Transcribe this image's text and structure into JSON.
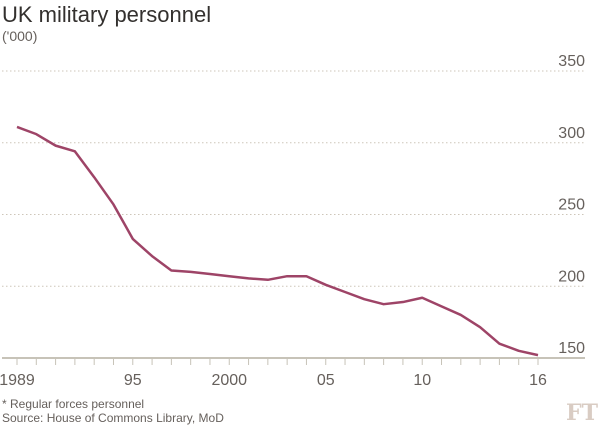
{
  "chart_data": {
    "type": "line",
    "title": "UK military personnel",
    "subtitle": "('000)",
    "note": "* Regular forces personnel",
    "source": "Source: House of Commons Library, MoD",
    "logo": "FT",
    "x": [
      1989,
      1990,
      1991,
      1992,
      1993,
      1994,
      1995,
      1996,
      1997,
      1998,
      1999,
      2000,
      2001,
      2002,
      2003,
      2004,
      2005,
      2006,
      2007,
      2008,
      2009,
      2010,
      2011,
      2012,
      2013,
      2014,
      2015,
      2016
    ],
    "series": [
      {
        "name": "Regular forces personnel",
        "color": "#9e4467",
        "values": [
          311,
          306,
          298,
          294,
          276,
          257,
          233,
          221,
          211,
          210,
          208.5,
          207,
          205.5,
          204.5,
          207,
          207,
          201,
          196,
          191,
          187.5,
          189,
          192,
          186,
          180,
          171.5,
          160,
          155,
          152
        ]
      }
    ],
    "ylim": [
      150,
      350
    ],
    "yticks": [
      "350",
      "300",
      "250",
      "200",
      "150"
    ],
    "ytick_values": [
      350,
      300,
      250,
      200,
      150
    ],
    "xtick_labels": [
      {
        "year": 1989,
        "label": "1989"
      },
      {
        "year": 1995,
        "label": "95"
      },
      {
        "year": 2000,
        "label": "2000"
      },
      {
        "year": 2005,
        "label": "05"
      },
      {
        "year": 2010,
        "label": "10"
      },
      {
        "year": 2016,
        "label": "16"
      }
    ],
    "grid": true
  }
}
